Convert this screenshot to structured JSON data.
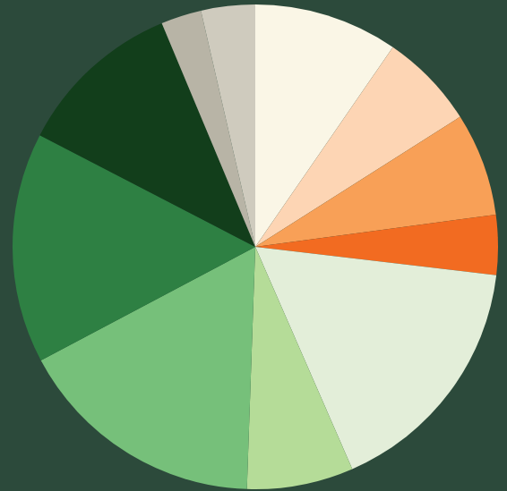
{
  "chart_data": {
    "type": "pie",
    "values": [
      9.6,
      6.4,
      6.9,
      4.0,
      16.6,
      7.1,
      16.7,
      15.4,
      11.1,
      2.7,
      3.6
    ],
    "colors": [
      "#faf6e6",
      "#fdd5b4",
      "#f8a057",
      "#f26b21",
      "#e3eed9",
      "#b5dc98",
      "#76c07a",
      "#2e8043",
      "#123e1b",
      "#b8b4a6",
      "#cfcbbe"
    ],
    "data_labels": false
  }
}
